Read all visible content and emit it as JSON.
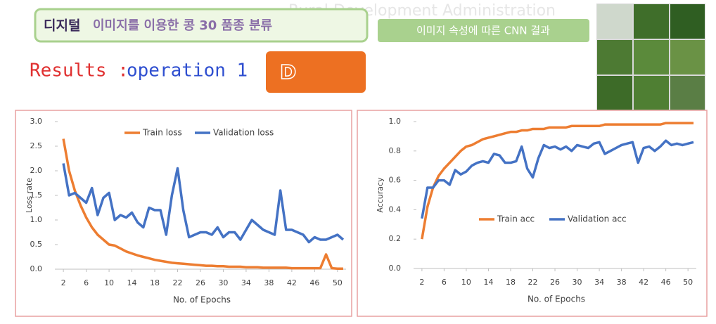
{
  "header": {
    "watermark": "Rural Development Administration",
    "title_bold": "디지털",
    "title_rest": "이미지를 이용한 콩 30 품종 분류",
    "button": "이미지 속성에 따른 CNN 결과",
    "results_label": "Results :",
    "results_operation": "operation 1",
    "badge": "D"
  },
  "chart_data": [
    {
      "type": "line",
      "xlabel": "No. of Epochs",
      "ylabel": "Loss rate",
      "legend": "top",
      "x": [
        2,
        3,
        4,
        5,
        6,
        7,
        8,
        9,
        10,
        11,
        12,
        13,
        14,
        15,
        16,
        17,
        18,
        19,
        20,
        21,
        22,
        23,
        24,
        25,
        26,
        27,
        28,
        29,
        30,
        31,
        32,
        33,
        34,
        35,
        36,
        37,
        38,
        39,
        40,
        41,
        42,
        43,
        44,
        45,
        46,
        47,
        48,
        49,
        50,
        51
      ],
      "xlim": [
        1,
        51.5
      ],
      "xticks": [
        2,
        6,
        10,
        14,
        18,
        22,
        26,
        30,
        34,
        38,
        42,
        46,
        50
      ],
      "ylim": [
        0,
        3
      ],
      "yticks": [
        {
          "value": 0,
          "label": "0.0"
        },
        0.5,
        {
          "value": 1,
          "label": "1.0"
        },
        1.5,
        {
          "value": 2,
          "label": "2.0"
        },
        2.5,
        {
          "value": 3,
          "label": "3.0"
        }
      ],
      "series": [
        {
          "name": "Train loss",
          "color": "#ed7d31",
          "values": [
            2.65,
            2.0,
            1.6,
            1.3,
            1.05,
            0.85,
            0.7,
            0.6,
            0.5,
            0.48,
            0.42,
            0.36,
            0.32,
            0.28,
            0.25,
            0.22,
            0.19,
            0.17,
            0.15,
            0.13,
            0.12,
            0.11,
            0.1,
            0.09,
            0.08,
            0.07,
            0.07,
            0.06,
            0.06,
            0.05,
            0.05,
            0.05,
            0.04,
            0.04,
            0.04,
            0.03,
            0.03,
            0.03,
            0.03,
            0.03,
            0.02,
            0.02,
            0.02,
            0.02,
            0.02,
            0.02,
            0.3,
            0.02,
            0.01,
            0.01
          ]
        },
        {
          "name": "Validation loss",
          "color": "#4472c4",
          "values": [
            2.15,
            1.5,
            1.55,
            1.45,
            1.35,
            1.65,
            1.1,
            1.45,
            1.55,
            1.0,
            1.1,
            1.05,
            1.15,
            0.95,
            0.85,
            1.25,
            1.2,
            1.2,
            0.7,
            1.5,
            2.05,
            1.2,
            0.65,
            0.7,
            0.75,
            0.75,
            0.7,
            0.85,
            0.65,
            0.75,
            0.75,
            0.6,
            0.8,
            1.0,
            0.9,
            0.8,
            0.75,
            0.7,
            1.6,
            0.8,
            0.8,
            0.75,
            0.7,
            0.55,
            0.65,
            0.6,
            0.6,
            0.65,
            0.7,
            0.6
          ]
        }
      ]
    },
    {
      "type": "line",
      "xlabel": "No. of Epochs",
      "ylabel": "Accuracy",
      "legend": "bottom",
      "x": [
        2,
        3,
        4,
        5,
        6,
        7,
        8,
        9,
        10,
        11,
        12,
        13,
        14,
        15,
        16,
        17,
        18,
        19,
        20,
        21,
        22,
        23,
        24,
        25,
        26,
        27,
        28,
        29,
        30,
        31,
        32,
        33,
        34,
        35,
        36,
        37,
        38,
        39,
        40,
        41,
        42,
        43,
        44,
        45,
        46,
        47,
        48,
        49,
        50,
        51
      ],
      "xlim": [
        1,
        51.5
      ],
      "xticks": [
        2,
        6,
        10,
        14,
        18,
        22,
        26,
        30,
        34,
        38,
        42,
        46,
        50
      ],
      "ylim": [
        0,
        1
      ],
      "yticks": [
        {
          "value": 0,
          "label": "0.0"
        },
        0.2,
        0.4,
        0.6,
        0.8,
        {
          "value": 1,
          "label": "1.0"
        }
      ],
      "series": [
        {
          "name": "Train acc",
          "color": "#ed7d31",
          "values": [
            0.2,
            0.42,
            0.55,
            0.63,
            0.68,
            0.72,
            0.76,
            0.8,
            0.83,
            0.84,
            0.86,
            0.88,
            0.89,
            0.9,
            0.91,
            0.92,
            0.93,
            0.93,
            0.94,
            0.94,
            0.95,
            0.95,
            0.95,
            0.96,
            0.96,
            0.96,
            0.96,
            0.97,
            0.97,
            0.97,
            0.97,
            0.97,
            0.97,
            0.98,
            0.98,
            0.98,
            0.98,
            0.98,
            0.98,
            0.98,
            0.98,
            0.98,
            0.98,
            0.98,
            0.99,
            0.99,
            0.99,
            0.99,
            0.99,
            0.99
          ]
        },
        {
          "name": "Validation acc",
          "color": "#4472c4",
          "values": [
            0.34,
            0.55,
            0.55,
            0.6,
            0.6,
            0.57,
            0.67,
            0.64,
            0.66,
            0.7,
            0.72,
            0.73,
            0.72,
            0.78,
            0.77,
            0.72,
            0.72,
            0.73,
            0.83,
            0.68,
            0.62,
            0.75,
            0.84,
            0.82,
            0.83,
            0.81,
            0.83,
            0.8,
            0.84,
            0.83,
            0.82,
            0.85,
            0.86,
            0.78,
            0.8,
            0.82,
            0.84,
            0.85,
            0.86,
            0.72,
            0.82,
            0.83,
            0.8,
            0.83,
            0.87,
            0.84,
            0.85,
            0.84,
            0.85,
            0.86
          ]
        }
      ]
    }
  ]
}
